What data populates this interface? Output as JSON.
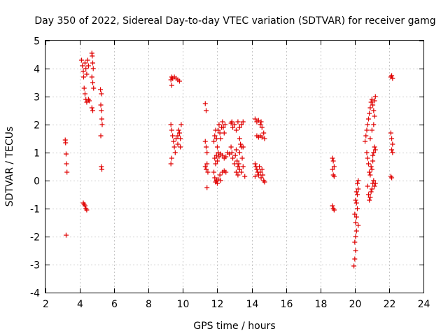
{
  "chart_data": {
    "type": "scatter",
    "title": "Day 350 of 2022, Sidereal Day-to-day VTEC variation (SDTVAR) for receiver gamg",
    "xlabel": "GPS time / hours",
    "ylabel": "SDTVAR / TECUs",
    "xlim": [
      2,
      24
    ],
    "ylim": [
      -4,
      5
    ],
    "xticks": [
      "2",
      "4",
      "6",
      "8",
      "10",
      "12",
      "14",
      "16",
      "18",
      "20",
      "22",
      "24"
    ],
    "yticks": [
      "-4",
      "-3",
      "-2",
      "-1",
      "0",
      "1",
      "2",
      "3",
      "4",
      "5"
    ],
    "grid": true,
    "marker": "plus",
    "color": "#e00000",
    "series": [
      {
        "points": [
          [
            3.15,
            1.45
          ],
          [
            3.17,
            1.35
          ],
          [
            3.2,
            0.95
          ],
          [
            3.22,
            0.6
          ],
          [
            3.25,
            0.3
          ],
          [
            3.2,
            -1.95
          ],
          [
            4.1,
            4.3
          ],
          [
            4.15,
            4.1
          ],
          [
            4.2,
            3.9
          ],
          [
            4.22,
            3.7
          ],
          [
            4.3,
            4.2
          ],
          [
            4.35,
            4.0
          ],
          [
            4.4,
            3.8
          ],
          [
            4.45,
            4.3
          ],
          [
            4.5,
            4.1
          ],
          [
            4.25,
            3.3
          ],
          [
            4.3,
            3.1
          ],
          [
            4.35,
            2.9
          ],
          [
            4.4,
            2.8
          ],
          [
            4.5,
            2.9
          ],
          [
            4.55,
            2.85
          ],
          [
            4.7,
            4.55
          ],
          [
            4.72,
            4.45
          ],
          [
            4.75,
            4.2
          ],
          [
            4.78,
            4.0
          ],
          [
            4.7,
            3.7
          ],
          [
            4.75,
            3.5
          ],
          [
            4.8,
            3.3
          ],
          [
            4.7,
            2.6
          ],
          [
            4.75,
            2.5
          ],
          [
            4.2,
            -0.8
          ],
          [
            4.25,
            -0.85
          ],
          [
            4.3,
            -0.9
          ],
          [
            4.35,
            -1.0
          ],
          [
            4.4,
            -1.05
          ],
          [
            5.2,
            3.25
          ],
          [
            5.25,
            3.1
          ],
          [
            5.22,
            2.7
          ],
          [
            5.25,
            2.5
          ],
          [
            5.28,
            2.2
          ],
          [
            5.3,
            2.0
          ],
          [
            5.22,
            1.6
          ],
          [
            5.25,
            0.5
          ],
          [
            5.28,
            0.4
          ],
          [
            9.3,
            3.6
          ],
          [
            9.35,
            3.7
          ],
          [
            9.4,
            3.65
          ],
          [
            9.5,
            3.7
          ],
          [
            9.6,
            3.65
          ],
          [
            9.7,
            3.6
          ],
          [
            9.8,
            3.55
          ],
          [
            9.35,
            3.4
          ],
          [
            9.3,
            2.0
          ],
          [
            9.35,
            1.8
          ],
          [
            9.4,
            1.6
          ],
          [
            9.45,
            1.4
          ],
          [
            9.5,
            1.2
          ],
          [
            9.55,
            1.0
          ],
          [
            9.35,
            0.8
          ],
          [
            9.3,
            0.6
          ],
          [
            9.6,
            1.5
          ],
          [
            9.7,
            1.6
          ],
          [
            9.75,
            1.8
          ],
          [
            9.8,
            1.7
          ],
          [
            9.85,
            1.5
          ],
          [
            9.9,
            2.0
          ],
          [
            9.85,
            1.2
          ],
          [
            9.7,
            1.3
          ],
          [
            11.3,
            2.75
          ],
          [
            11.35,
            2.5
          ],
          [
            11.3,
            1.4
          ],
          [
            11.35,
            1.2
          ],
          [
            11.4,
            1.0
          ],
          [
            11.3,
            0.5
          ],
          [
            11.35,
            0.4
          ],
          [
            11.4,
            0.6
          ],
          [
            11.45,
            0.3
          ],
          [
            11.4,
            -0.25
          ],
          [
            11.8,
            1.4
          ],
          [
            11.85,
            1.6
          ],
          [
            11.9,
            1.8
          ],
          [
            11.95,
            1.5
          ],
          [
            12.0,
            1.2
          ],
          [
            12.05,
            1.8
          ],
          [
            12.1,
            2.0
          ],
          [
            12.15,
            1.7
          ],
          [
            12.2,
            1.5
          ],
          [
            12.25,
            1.9
          ],
          [
            12.3,
            2.1
          ],
          [
            12.35,
            1.9
          ],
          [
            12.4,
            1.7
          ],
          [
            12.45,
            2.0
          ],
          [
            11.85,
            0.8
          ],
          [
            11.9,
            0.6
          ],
          [
            11.95,
            0.9
          ],
          [
            12.0,
            0.7
          ],
          [
            12.05,
            1.0
          ],
          [
            12.1,
            0.85
          ],
          [
            12.2,
            0.95
          ],
          [
            12.3,
            0.9
          ],
          [
            12.4,
            0.8
          ],
          [
            12.5,
            0.85
          ],
          [
            12.6,
            1.0
          ],
          [
            12.7,
            0.95
          ],
          [
            11.8,
            0.3
          ],
          [
            11.85,
            0.1
          ],
          [
            11.9,
            -0.05
          ],
          [
            11.95,
            0.0
          ],
          [
            12.0,
            -0.1
          ],
          [
            12.05,
            0.05
          ],
          [
            12.15,
            0.2
          ],
          [
            12.2,
            0.0
          ],
          [
            12.3,
            0.3
          ],
          [
            12.4,
            0.35
          ],
          [
            12.5,
            0.3
          ],
          [
            12.8,
            2.05
          ],
          [
            12.85,
            2.1
          ],
          [
            12.9,
            1.9
          ],
          [
            13.0,
            2.0
          ],
          [
            13.1,
            1.8
          ],
          [
            13.2,
            2.1
          ],
          [
            13.3,
            1.9
          ],
          [
            13.4,
            2.0
          ],
          [
            13.5,
            2.1
          ],
          [
            12.8,
            1.2
          ],
          [
            12.85,
            1.0
          ],
          [
            12.9,
            0.8
          ],
          [
            13.0,
            0.6
          ],
          [
            13.05,
            0.9
          ],
          [
            13.1,
            1.1
          ],
          [
            13.15,
            0.7
          ],
          [
            13.2,
            0.5
          ],
          [
            13.25,
            0.6
          ],
          [
            13.3,
            1.0
          ],
          [
            13.35,
            1.3
          ],
          [
            13.4,
            1.2
          ],
          [
            13.45,
            0.8
          ],
          [
            13.5,
            0.5
          ],
          [
            13.1,
            0.3
          ],
          [
            13.2,
            0.2
          ],
          [
            13.3,
            0.4
          ],
          [
            13.4,
            0.3
          ],
          [
            13.6,
            0.15
          ],
          [
            13.3,
            1.5
          ],
          [
            13.5,
            1.2
          ],
          [
            14.2,
            2.2
          ],
          [
            14.3,
            2.1
          ],
          [
            14.4,
            2.15
          ],
          [
            14.5,
            2.0
          ],
          [
            14.55,
            2.1
          ],
          [
            14.6,
            1.9
          ],
          [
            14.7,
            1.7
          ],
          [
            14.75,
            1.5
          ],
          [
            14.3,
            1.6
          ],
          [
            14.4,
            1.55
          ],
          [
            14.5,
            1.6
          ],
          [
            14.6,
            1.55
          ],
          [
            14.2,
            0.6
          ],
          [
            14.25,
            0.5
          ],
          [
            14.3,
            0.4
          ],
          [
            14.35,
            0.3
          ],
          [
            14.4,
            0.2
          ],
          [
            14.45,
            0.5
          ],
          [
            14.5,
            0.3
          ],
          [
            14.55,
            0.1
          ],
          [
            14.6,
            0.4
          ],
          [
            14.65,
            0.2
          ],
          [
            14.7,
            0.0
          ],
          [
            14.75,
            -0.05
          ],
          [
            14.2,
            0.15
          ],
          [
            18.7,
            0.8
          ],
          [
            18.75,
            0.7
          ],
          [
            18.8,
            0.5
          ],
          [
            18.7,
            0.4
          ],
          [
            18.75,
            0.2
          ],
          [
            18.8,
            0.15
          ],
          [
            18.7,
            -0.9
          ],
          [
            18.75,
            -1.0
          ],
          [
            18.8,
            -1.05
          ],
          [
            19.95,
            -3.05
          ],
          [
            20.0,
            -2.8
          ],
          [
            20.05,
            -2.5
          ],
          [
            20.0,
            -2.2
          ],
          [
            20.05,
            -2.0
          ],
          [
            20.1,
            -1.8
          ],
          [
            20.05,
            -1.5
          ],
          [
            20.1,
            -1.3
          ],
          [
            20.15,
            -1.0
          ],
          [
            20.1,
            -0.8
          ],
          [
            20.15,
            -0.5
          ],
          [
            20.2,
            -0.3
          ],
          [
            20.15,
            -0.1
          ],
          [
            20.2,
            0.0
          ],
          [
            20.0,
            -1.2
          ],
          [
            20.05,
            -0.7
          ],
          [
            20.1,
            -0.4
          ],
          [
            20.2,
            -1.6
          ],
          [
            20.6,
            1.4
          ],
          [
            20.65,
            1.6
          ],
          [
            20.7,
            1.8
          ],
          [
            20.75,
            2.0
          ],
          [
            20.8,
            2.2
          ],
          [
            20.85,
            2.4
          ],
          [
            20.9,
            2.6
          ],
          [
            20.95,
            2.8
          ],
          [
            21.0,
            2.9
          ],
          [
            21.05,
            2.7
          ],
          [
            21.1,
            2.5
          ],
          [
            21.15,
            2.85
          ],
          [
            21.2,
            3.0
          ],
          [
            20.9,
            1.5
          ],
          [
            21.0,
            1.8
          ],
          [
            21.1,
            2.0
          ],
          [
            21.15,
            2.3
          ],
          [
            20.7,
            1.0
          ],
          [
            20.75,
            0.8
          ],
          [
            20.8,
            0.6
          ],
          [
            20.85,
            0.3
          ],
          [
            20.9,
            0.2
          ],
          [
            20.95,
            0.5
          ],
          [
            21.0,
            0.4
          ],
          [
            21.05,
            0.7
          ],
          [
            21.1,
            1.0
          ],
          [
            21.15,
            1.2
          ],
          [
            21.2,
            1.1
          ],
          [
            21.05,
            0.9
          ],
          [
            20.75,
            -0.2
          ],
          [
            20.8,
            -0.5
          ],
          [
            20.85,
            -0.7
          ],
          [
            20.9,
            -0.6
          ],
          [
            20.95,
            -0.4
          ],
          [
            21.0,
            -0.3
          ],
          [
            21.05,
            -0.1
          ],
          [
            21.1,
            0.0
          ],
          [
            21.15,
            -0.2
          ],
          [
            21.2,
            -0.1
          ],
          [
            22.1,
            3.7
          ],
          [
            22.15,
            3.75
          ],
          [
            22.2,
            3.65
          ],
          [
            22.1,
            1.7
          ],
          [
            22.15,
            1.5
          ],
          [
            22.2,
            1.3
          ],
          [
            22.15,
            1.1
          ],
          [
            22.2,
            1.0
          ],
          [
            22.1,
            0.15
          ],
          [
            22.15,
            0.1
          ]
        ]
      }
    ]
  }
}
